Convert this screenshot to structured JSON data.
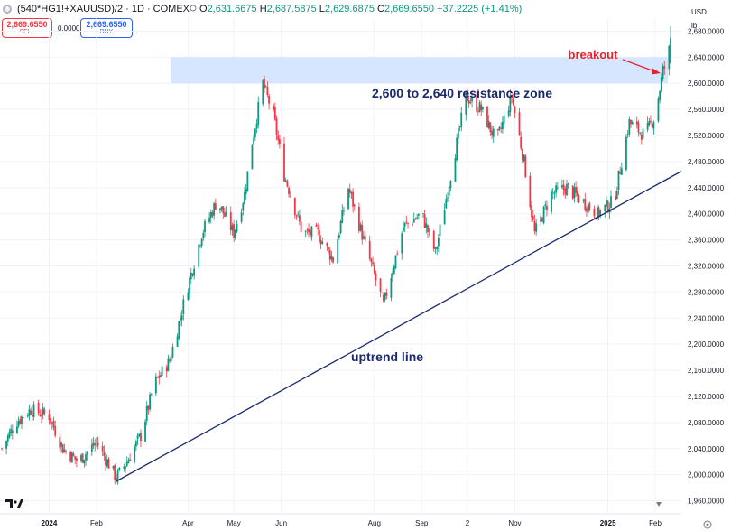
{
  "header": {
    "symbol": "(540*HG1!+XAUUSD)/2 · 1D · COMEX",
    "o_label": "O",
    "o_value": "2,631.6675",
    "h_label": "H",
    "h_value": "2,687.5875",
    "l_label": "L",
    "l_value": "2,629.6875",
    "c_label": "C",
    "c_value": "2,669.6550",
    "change": "+37.2225 (+1.41%)"
  },
  "trade": {
    "sell_price": "2,669.6550",
    "sell_label": "SELL",
    "spread": "0.0000",
    "buy_price": "2,669.6550",
    "buy_label": "BUY"
  },
  "axis_units": {
    "currency": "USD",
    "unit": "lb"
  },
  "colors": {
    "up": "#089981",
    "down": "#f23645",
    "zone": "#cfe2ff",
    "annotation": "#1a2a6c",
    "breakout": "#e8222b"
  },
  "icons": [
    "tradingview-logo-icon",
    "settings-icon",
    "price-marker-icon"
  ],
  "chart_data": {
    "type": "candlestick",
    "y_axis": {
      "ylim": [
        1940,
        2700
      ],
      "ticks": [
        "1,960.0000",
        "2,000.0000",
        "2,040.0000",
        "2,080.0000",
        "2,120.0000",
        "2,160.0000",
        "2,200.0000",
        "2,240.0000",
        "2,280.0000",
        "2,320.0000",
        "2,360.0000",
        "2,400.0000",
        "2,440.0000",
        "2,480.0000",
        "2,520.0000",
        "2,560.0000",
        "2,600.0000",
        "2,640.0000",
        "2,680.0000"
      ]
    },
    "x_axis": {
      "range": [
        "2023-12-01",
        "2025-02-11"
      ],
      "ticks": [
        {
          "label": "2024",
          "date": "2024-01-01"
        },
        {
          "label": "Feb",
          "date": "2024-02-01"
        },
        {
          "label": "Apr",
          "date": "2024-04-01"
        },
        {
          "label": "May",
          "date": "2024-05-01"
        },
        {
          "label": "Jun",
          "date": "2024-06-01"
        },
        {
          "label": "Aug",
          "date": "2024-08-01"
        },
        {
          "label": "Sep",
          "date": "2024-09-01"
        },
        {
          "label": "2",
          "date": "2024-10-01"
        },
        {
          "label": "Nov",
          "date": "2024-11-01"
        },
        {
          "label": "2025",
          "date": "2025-01-01"
        },
        {
          "label": "Feb",
          "date": "2025-02-01"
        }
      ]
    },
    "price_path": [
      {
        "date": "2023-12-01",
        "close": 2040
      },
      {
        "date": "2023-12-10",
        "close": 2080
      },
      {
        "date": "2023-12-20",
        "close": 2100
      },
      {
        "date": "2024-01-01",
        "close": 2090
      },
      {
        "date": "2024-01-10",
        "close": 2040
      },
      {
        "date": "2024-01-20",
        "close": 2020
      },
      {
        "date": "2024-02-01",
        "close": 2050
      },
      {
        "date": "2024-02-14",
        "close": 1995
      },
      {
        "date": "2024-02-21",
        "close": 2020
      },
      {
        "date": "2024-03-01",
        "close": 2060
      },
      {
        "date": "2024-03-10",
        "close": 2140
      },
      {
        "date": "2024-03-20",
        "close": 2175
      },
      {
        "date": "2024-04-01",
        "close": 2290
      },
      {
        "date": "2024-04-10",
        "close": 2370
      },
      {
        "date": "2024-04-20",
        "close": 2420
      },
      {
        "date": "2024-05-01",
        "close": 2370
      },
      {
        "date": "2024-05-08",
        "close": 2430
      },
      {
        "date": "2024-05-13",
        "close": 2510
      },
      {
        "date": "2024-05-20",
        "close": 2600
      },
      {
        "date": "2024-05-27",
        "close": 2550
      },
      {
        "date": "2024-06-03",
        "close": 2460
      },
      {
        "date": "2024-06-15",
        "close": 2370
      },
      {
        "date": "2024-06-25",
        "close": 2370
      },
      {
        "date": "2024-07-05",
        "close": 2330
      },
      {
        "date": "2024-07-15",
        "close": 2440
      },
      {
        "date": "2024-07-25",
        "close": 2360
      },
      {
        "date": "2024-08-07",
        "close": 2260
      },
      {
        "date": "2024-08-20",
        "close": 2380
      },
      {
        "date": "2024-09-01",
        "close": 2400
      },
      {
        "date": "2024-09-10",
        "close": 2340
      },
      {
        "date": "2024-09-20",
        "close": 2460
      },
      {
        "date": "2024-09-30",
        "close": 2580
      },
      {
        "date": "2024-10-10",
        "close": 2560
      },
      {
        "date": "2024-10-20",
        "close": 2510
      },
      {
        "date": "2024-10-30",
        "close": 2580
      },
      {
        "date": "2024-11-07",
        "close": 2480
      },
      {
        "date": "2024-11-14",
        "close": 2370
      },
      {
        "date": "2024-11-25",
        "close": 2430
      },
      {
        "date": "2024-12-05",
        "close": 2440
      },
      {
        "date": "2024-12-15",
        "close": 2420
      },
      {
        "date": "2024-12-25",
        "close": 2400
      },
      {
        "date": "2025-01-05",
        "close": 2420
      },
      {
        "date": "2025-01-15",
        "close": 2540
      },
      {
        "date": "2025-01-25",
        "close": 2520
      },
      {
        "date": "2025-02-01",
        "close": 2550
      },
      {
        "date": "2025-02-06",
        "close": 2620
      },
      {
        "date": "2025-02-09",
        "close": 2631.6675
      },
      {
        "date": "2025-02-11",
        "close": 2669.655
      }
    ],
    "last_candle": {
      "open": 2631.6675,
      "high": 2687.5875,
      "low": 2629.6875,
      "close": 2669.655
    },
    "annotations": {
      "zone": {
        "low": 2600,
        "high": 2640,
        "label": "2,600 to 2,640 resistance zone"
      },
      "trendline": {
        "start": {
          "date": "2024-02-14",
          "value": 1990
        },
        "end": {
          "date": "2025-02-18",
          "value": 2465
        },
        "label": "uptrend line"
      },
      "breakout": {
        "label": "breakout",
        "date": "2025-02-09",
        "value": 2652
      }
    }
  }
}
